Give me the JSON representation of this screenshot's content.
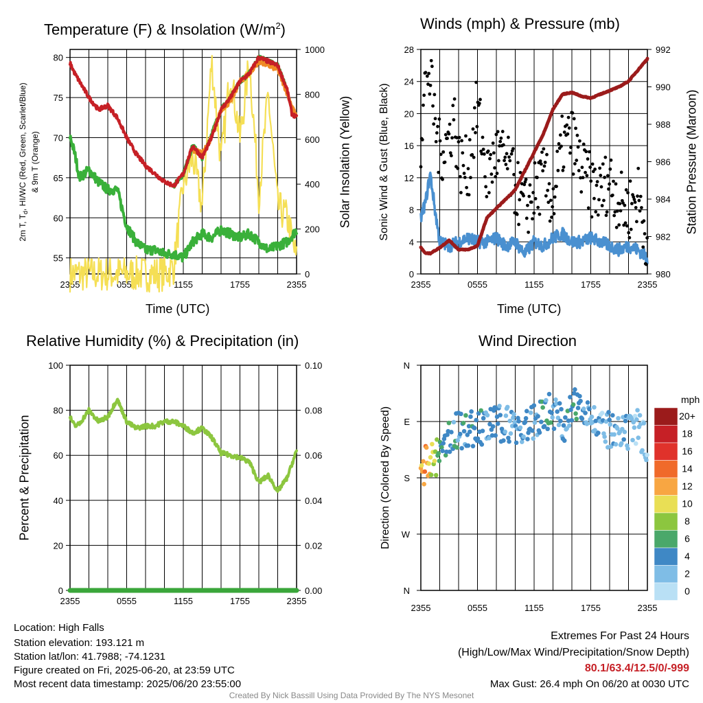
{
  "colors": {
    "temp_red": "#c62026",
    "hiwc_green": "#3aa63a",
    "t9m_orange": "#f08a24",
    "dew_green": "#3ab03a",
    "solar_yellow": "#f5df55",
    "wind_blue": "#4a90d0",
    "gust_black": "#000000",
    "pressure_maroon": "#9b1b1b",
    "rh_green": "#8cc63f",
    "precip_green": "#3aa63a",
    "extremes_red": "#c62026",
    "footer_gray": "#888888"
  },
  "panels": {
    "temp": {
      "title_main": "Temperature (F) & Insolation (W/m",
      "title_sup": "2",
      "title_end": ")",
      "ylabel_left_line1": "2m T, T",
      "ylabel_left_sub": "d",
      "ylabel_left_rest": ", HI/WC (Red, Green, Scarlet/Blue)",
      "ylabel_left_line2": "& 9m T (Orange)",
      "ylabel_right": "Solar Insolation (Yellow)",
      "xlabel": "Time (UTC)"
    },
    "wind": {
      "title": "Winds (mph) & Pressure (mb)",
      "ylabel_left": "Sonic Wind & Gust (Blue, Black)",
      "ylabel_right": "Station Pressure (Maroon)",
      "xlabel": "Time (UTC)"
    },
    "rh": {
      "title": "Relative Humidity (%) & Precipitation (in)",
      "ylabel_left": "Percent & Precipitation"
    },
    "dir": {
      "title": "Wind Direction",
      "ylabel_left": "Direction (Colored By Speed)",
      "colorbar_unit": "mph"
    }
  },
  "chart_data": [
    {
      "type": "line",
      "id": "temperature_insolation",
      "title": "Temperature (F) & Insolation (W/m2)",
      "xlabel": "Time (UTC)",
      "x_ticks": [
        "2355",
        "0555",
        "1155",
        "1755",
        "2355"
      ],
      "y_left_ticks": [
        55,
        60,
        65,
        70,
        75,
        80
      ],
      "y_left_range": [
        53,
        81
      ],
      "y_right_ticks": [
        0,
        200,
        400,
        600,
        800,
        1000
      ],
      "y_right_range": [
        0,
        1000
      ],
      "grid": true,
      "series": [
        {
          "name": "2m T",
          "axis": "left",
          "color": "#c62026",
          "x_hours": [
            0,
            0.5,
            1,
            2,
            3,
            4,
            5,
            6,
            7,
            8,
            9,
            10,
            11,
            12,
            13,
            14,
            15,
            16,
            17,
            18,
            19,
            20,
            21,
            22,
            23,
            23.5,
            24
          ],
          "values": [
            79.3,
            78,
            77,
            75,
            73.5,
            74,
            72.5,
            70,
            68,
            66.5,
            65.5,
            64.5,
            64,
            65.5,
            69,
            67.5,
            70,
            73.5,
            75,
            77,
            78,
            80,
            79.5,
            79,
            76,
            73,
            72.5
          ]
        },
        {
          "name": "HI/WC",
          "axis": "left",
          "color": "#3aa63a",
          "x_hours": [
            11,
            12,
            13,
            14,
            15,
            16,
            17,
            18,
            19,
            20,
            21,
            22,
            23
          ],
          "values": [
            64,
            65.5,
            69,
            67.5,
            70.5,
            73.5,
            75,
            77,
            78,
            80,
            79.5,
            79,
            76
          ]
        },
        {
          "name": "9m T",
          "axis": "left",
          "color": "#f08a24",
          "x_hours": [
            13,
            14,
            15,
            16,
            17,
            18,
            19,
            20,
            21,
            22,
            23,
            24
          ],
          "values": [
            68.5,
            68,
            70,
            73.5,
            74.5,
            77,
            78,
            79.5,
            79,
            78.5,
            75.5,
            72.5
          ]
        },
        {
          "name": "Td",
          "axis": "left",
          "color": "#3ab03a",
          "x_hours": [
            0,
            0.5,
            1,
            2,
            3,
            4,
            5,
            6,
            7,
            8,
            9,
            10,
            11,
            12,
            13,
            14,
            15,
            16,
            17,
            18,
            19,
            20,
            21,
            22,
            23,
            24
          ],
          "values": [
            70.2,
            68,
            65,
            66,
            64.5,
            63.5,
            63.5,
            59,
            57,
            56,
            56,
            55.5,
            55.5,
            55,
            57,
            58,
            57.5,
            58.5,
            58,
            57.5,
            58,
            57,
            56,
            56.5,
            57,
            58.5
          ]
        },
        {
          "name": "Solar Insolation",
          "axis": "right",
          "color": "#f5df55",
          "x_hours": [
            0,
            2,
            4,
            6,
            8,
            9,
            10,
            11,
            12,
            13,
            14,
            15,
            16,
            17,
            18,
            19,
            20,
            21,
            22,
            23,
            24
          ],
          "values": [
            0,
            0,
            0,
            0,
            0,
            0,
            0,
            30,
            400,
            520,
            300,
            950,
            500,
            900,
            600,
            950,
            350,
            800,
            300,
            250,
            60
          ]
        }
      ]
    },
    {
      "type": "scatter",
      "id": "winds_pressure",
      "title": "Winds (mph) & Pressure (mb)",
      "xlabel": "Time (UTC)",
      "x_ticks": [
        "2355",
        "0555",
        "1155",
        "1755",
        "2355"
      ],
      "y_left_ticks": [
        0,
        4,
        8,
        12,
        16,
        20,
        24,
        28
      ],
      "y_left_range": [
        0,
        28
      ],
      "y_right_ticks": [
        980,
        982,
        984,
        986,
        988,
        990,
        992
      ],
      "y_right_range": [
        980,
        992
      ],
      "grid": true,
      "series": [
        {
          "name": "Sonic Wind",
          "axis": "left",
          "color": "#4a90d0",
          "x_hours": [
            0,
            0.5,
            1,
            1.5,
            2,
            3,
            4,
            5,
            6,
            7,
            8,
            9,
            10,
            11,
            12,
            13,
            14,
            15,
            16,
            17,
            18,
            19,
            20,
            21,
            22,
            23,
            24
          ],
          "values": [
            7,
            9,
            12.5,
            8,
            4,
            3.5,
            4,
            4.5,
            4,
            4,
            4.5,
            3.5,
            4,
            2.5,
            4,
            3.5,
            4.5,
            5,
            4,
            4,
            4.5,
            4,
            3.5,
            3,
            3.5,
            3,
            2
          ]
        },
        {
          "name": "Gust",
          "axis": "left",
          "color": "#000000",
          "x_hours": [
            0,
            0.3,
            0.6,
            1,
            1.5,
            2,
            3,
            3.5,
            4,
            5,
            6,
            7,
            8,
            9,
            10,
            11,
            12,
            13,
            14,
            15,
            16,
            17,
            18,
            19,
            20,
            21,
            22,
            23,
            24
          ],
          "values": [
            17,
            21,
            26.4,
            24,
            19,
            15,
            17,
            20,
            14,
            13,
            21,
            12,
            15,
            14,
            11,
            8,
            10,
            12,
            9,
            16,
            17,
            13,
            11,
            10,
            12,
            9,
            8,
            10,
            4
          ]
        },
        {
          "name": "Station Pressure",
          "axis": "right",
          "color": "#9b1b1b",
          "x_hours": [
            0,
            0.5,
            1,
            2,
            3,
            4,
            5,
            6,
            7,
            8,
            9,
            10,
            11,
            12,
            13,
            14,
            15,
            16,
            17,
            18,
            19,
            20,
            21,
            22,
            23,
            24
          ],
          "values": [
            981.4,
            981.1,
            981.1,
            981.4,
            981.8,
            981.3,
            981.3,
            981.5,
            983,
            983.5,
            984,
            984.5,
            985.5,
            986.5,
            987.5,
            988.8,
            989.6,
            989.7,
            989.5,
            989.4,
            989.6,
            989.8,
            990,
            990.3,
            990.9,
            991.5
          ]
        }
      ]
    },
    {
      "type": "line",
      "id": "rh_precip",
      "title": "Relative Humidity (%) & Precipitation (in)",
      "ylabel": "Percent & Precipitation",
      "x_ticks": [
        "2355",
        "0555",
        "1155",
        "1755",
        "2355"
      ],
      "y_left_ticks": [
        0,
        20,
        40,
        60,
        80,
        100
      ],
      "y_left_range": [
        0,
        100
      ],
      "y_right_ticks": [
        "0.00",
        "0.02",
        "0.04",
        "0.06",
        "0.08",
        "0.10"
      ],
      "y_right_range": [
        0,
        0.1
      ],
      "grid": true,
      "series": [
        {
          "name": "Relative Humidity",
          "axis": "left",
          "color": "#8cc63f",
          "x_hours": [
            0,
            0.5,
            1,
            2,
            3,
            4,
            5,
            6,
            7,
            8,
            9,
            10,
            11,
            12,
            13,
            14,
            15,
            16,
            17,
            18,
            19,
            20,
            21,
            22,
            23,
            24
          ],
          "values": [
            77,
            73,
            74,
            80,
            75,
            77,
            85,
            75,
            72,
            73,
            73,
            75,
            75,
            73,
            70,
            72,
            68,
            61,
            60,
            59,
            57,
            48,
            51,
            44,
            50,
            62
          ]
        },
        {
          "name": "Precipitation",
          "axis": "right",
          "color": "#3aa63a",
          "x_hours": [
            0,
            24
          ],
          "values": [
            0,
            0
          ]
        }
      ]
    },
    {
      "type": "scatter",
      "id": "wind_direction",
      "title": "Wind Direction",
      "ylabel": "Direction (Colored By Speed)",
      "x_ticks": [
        "2355",
        "0555",
        "1155",
        "1755",
        "2355"
      ],
      "y_ticks": [
        "N",
        "E",
        "S",
        "W",
        "N"
      ],
      "y_range_degrees": [
        0,
        360
      ],
      "grid": true,
      "colorbar": {
        "unit": "mph",
        "labels": [
          "20+",
          "18",
          "16",
          "14",
          "12",
          "10",
          "8",
          "6",
          "4",
          "2",
          "0"
        ],
        "colors": [
          "#9b1b1b",
          "#c62026",
          "#e0322b",
          "#f06a2a",
          "#f8a642",
          "#e9df55",
          "#8cc63f",
          "#4aa86a",
          "#3f88c5",
          "#7fbde6",
          "#b9e0f5"
        ]
      },
      "series": [
        {
          "name": "Direction",
          "x_hours": [
            0,
            0.3,
            0.6,
            1,
            1.5,
            2,
            2.5,
            3,
            4,
            5,
            6,
            7,
            8,
            9,
            10,
            11,
            12,
            13,
            14,
            15,
            16,
            17,
            18,
            19,
            20,
            21,
            22,
            23,
            24
          ],
          "degrees": [
            195,
            198,
            202,
            205,
            210,
            215,
            220,
            250,
            255,
            258,
            258,
            262,
            265,
            268,
            262,
            258,
            268,
            285,
            290,
            265,
            285,
            305,
            280,
            255,
            255,
            245,
            250,
            260,
            235
          ],
          "speeds_mph": [
            11,
            12,
            12,
            10,
            8,
            6,
            5,
            4,
            4,
            4,
            4,
            4,
            4,
            3,
            3,
            4,
            3,
            4,
            4,
            3,
            4,
            4,
            3,
            2,
            3,
            2,
            2,
            2,
            1
          ]
        }
      ]
    }
  ],
  "footer": {
    "location": "Location: High Falls",
    "elevation": "Station elevation: 193.121 m",
    "latlon": "Station lat/lon: 41.7988; -74.1231",
    "created": "Figure created on Fri, 2025-06-20, at 23:59 UTC",
    "recent": "Most recent data timestamp: 2025/06/20 23:55:00",
    "extremes_title": "Extremes For Past 24 Hours",
    "extremes_legend": "(High/Low/Max Wind/Precipitation/Snow Depth)",
    "extremes_values": "80.1/63.4/12.5/0/-999",
    "max_gust": "Max Gust: 26.4 mph On 06/20 at 0030 UTC",
    "credit": "Created By Nick Bassill Using Data Provided By The NYS Mesonet"
  }
}
